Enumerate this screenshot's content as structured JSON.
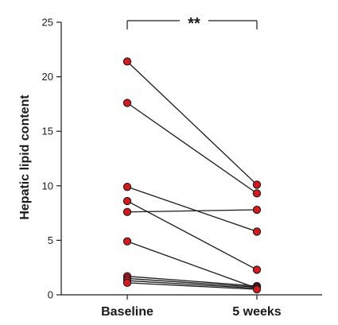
{
  "chart_data": {
    "type": "scatter",
    "style": "paired-before-after",
    "categories": [
      "Baseline",
      "5 weeks"
    ],
    "ylabel": "Hepatic lipid content",
    "xlabel": "",
    "ylim": [
      0,
      25
    ],
    "yticks": [
      0,
      5,
      10,
      15,
      20,
      25
    ],
    "significance": {
      "label": "**",
      "between": [
        "Baseline",
        "5 weeks"
      ]
    },
    "pairs": [
      {
        "baseline": 21.4,
        "week5": 10.1
      },
      {
        "baseline": 17.6,
        "week5": 9.3
      },
      {
        "baseline": 9.9,
        "week5": 5.8
      },
      {
        "baseline": 8.6,
        "week5": 2.3
      },
      {
        "baseline": 7.6,
        "week5": 7.8
      },
      {
        "baseline": 4.9,
        "week5": 0.6
      },
      {
        "baseline": 1.7,
        "week5": 0.8
      },
      {
        "baseline": 1.5,
        "week5": 0.7
      },
      {
        "baseline": 1.3,
        "week5": 0.6
      },
      {
        "baseline": 1.1,
        "week5": 0.5
      }
    ],
    "grid": false,
    "legend": "none",
    "colors": {
      "marker_fill": "#d7191c",
      "marker_stroke": "#1a1a1a",
      "line": "#1a1a1a",
      "axis": "#1a1a1a"
    }
  }
}
